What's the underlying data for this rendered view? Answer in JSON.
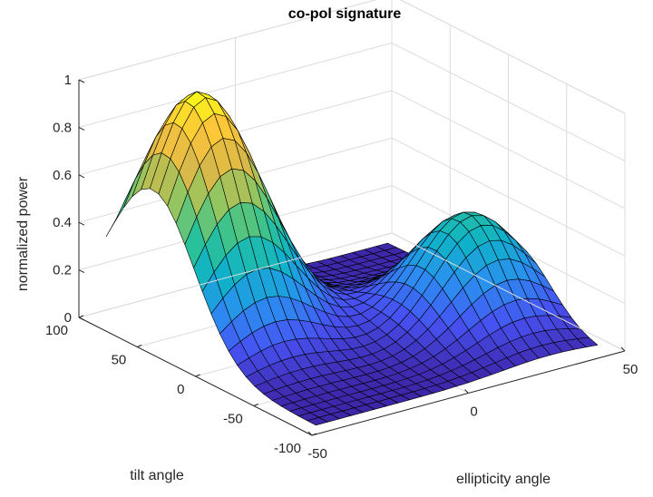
{
  "chart_data": {
    "type": "surface",
    "title": "co-pol signature",
    "xlabel": "ellipticity angle",
    "ylabel": "tilt angle",
    "zlabel": "normalized power",
    "x": {
      "min": -45,
      "max": 45,
      "step": 3.75,
      "ticks": [
        -50,
        0,
        50
      ],
      "lim": [
        -50,
        50
      ]
    },
    "y": {
      "min": -90,
      "max": 90,
      "step": 7.5,
      "ticks": [
        -100,
        -50,
        0,
        50,
        100
      ],
      "lim": [
        -100,
        100
      ]
    },
    "z": {
      "min": 0,
      "max": 1,
      "ticks": [
        0,
        0.2,
        0.4,
        0.6,
        0.8,
        1
      ],
      "lim": [
        0,
        1
      ]
    },
    "peaks": [
      {
        "ellipticity_angle": -30,
        "tilt_angle": 50,
        "normalized_power": 1.0
      },
      {
        "ellipticity_angle": 30,
        "tilt_angle": -20,
        "normalized_power": 0.45
      }
    ],
    "colormap": "parula",
    "colormap_stops": [
      "#3e26a8",
      "#4751f2",
      "#2b8ff1",
      "#0fb2c9",
      "#2cc297",
      "#8ac763",
      "#d7b949",
      "#fcc33b",
      "#f9fb15"
    ],
    "edge_color": "#000000",
    "grid": true,
    "legend": "none"
  }
}
